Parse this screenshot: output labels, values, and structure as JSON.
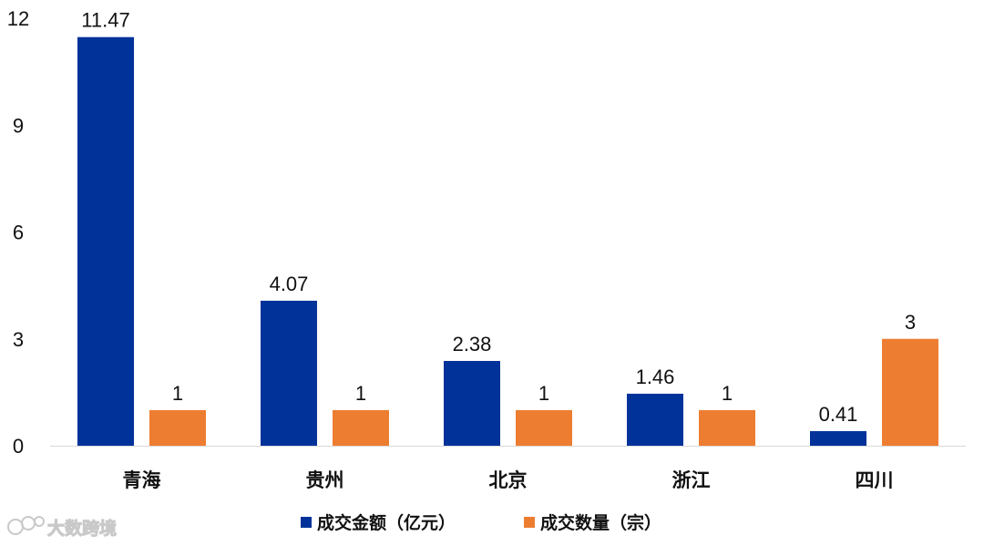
{
  "chart_data": {
    "type": "bar",
    "title": "",
    "xlabel": "",
    "ylabel": "",
    "categories": [
      "青海",
      "贵州",
      "北京",
      "浙江",
      "四川"
    ],
    "series": [
      {
        "name": "成交金额（亿元）",
        "color": "#003299",
        "values": [
          11.47,
          4.07,
          2.38,
          1.46,
          0.41
        ],
        "labels": [
          "11.47",
          "4.07",
          "2.38",
          "1.46",
          "0.41"
        ]
      },
      {
        "name": "成交数量（宗）",
        "color": "#ED7D31",
        "values": [
          1,
          1,
          1,
          1,
          3
        ],
        "labels": [
          "1",
          "1",
          "1",
          "1",
          "3"
        ]
      }
    ],
    "ylim": [
      0,
      12
    ],
    "yticks": [
      0,
      3,
      6,
      9,
      12
    ],
    "grid": false,
    "legend": "bottom"
  },
  "watermark": {
    "text": "大数跨境",
    "icon": "dsk-logo-icon"
  }
}
